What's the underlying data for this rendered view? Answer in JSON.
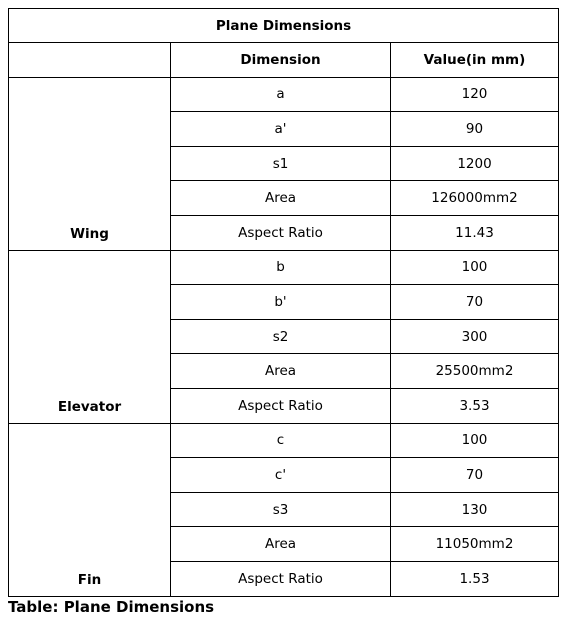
{
  "table": {
    "title": "Plane Dimensions",
    "headers": [
      "",
      "Dimension",
      "Value(in mm)"
    ],
    "groups": [
      {
        "name": "Wing",
        "rows": [
          {
            "dimension": "a",
            "value": "120"
          },
          {
            "dimension": "a'",
            "value": "90"
          },
          {
            "dimension": "s1",
            "value": "1200"
          },
          {
            "dimension": "Area",
            "value": "126000mm2"
          },
          {
            "dimension": "Aspect Ratio",
            "value": "11.43"
          }
        ]
      },
      {
        "name": "Elevator",
        "rows": [
          {
            "dimension": "b",
            "value": "100"
          },
          {
            "dimension": "b'",
            "value": "70"
          },
          {
            "dimension": "s2",
            "value": "300"
          },
          {
            "dimension": "Area",
            "value": "25500mm2"
          },
          {
            "dimension": "Aspect Ratio",
            "value": "3.53"
          }
        ]
      },
      {
        "name": "Fin",
        "rows": [
          {
            "dimension": "c",
            "value": "100"
          },
          {
            "dimension": "c'",
            "value": "70"
          },
          {
            "dimension": "s3",
            "value": "130"
          },
          {
            "dimension": "Area",
            "value": "11050mm2"
          },
          {
            "dimension": "Aspect Ratio",
            "value": "1.53"
          }
        ]
      }
    ]
  },
  "caption": "Table: Plane Dimensions"
}
